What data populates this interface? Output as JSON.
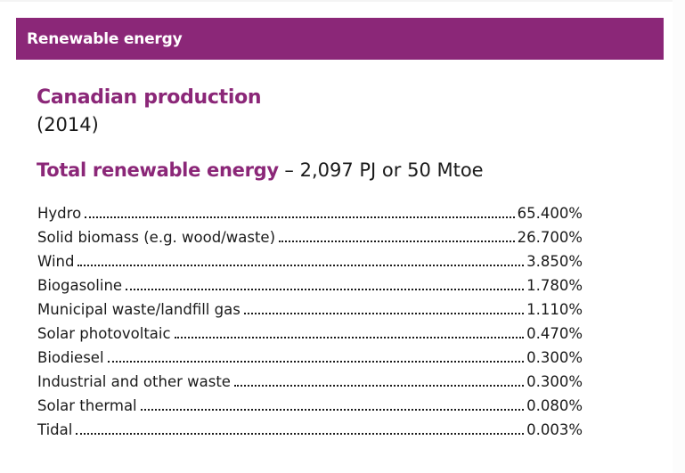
{
  "header": {
    "title": "Renewable energy",
    "color": "#8b2778"
  },
  "section": {
    "heading": "Canadian production",
    "year": "(2014)"
  },
  "total": {
    "label": "Total renewable energy",
    "value": " – 2,097 PJ or 50 Mtoe"
  },
  "sources": [
    {
      "label": "Hydro",
      "value": "65.400%"
    },
    {
      "label": "Solid biomass (e.g. wood/waste)",
      "value": "26.700%"
    },
    {
      "label": "Wind",
      "value": "3.850%"
    },
    {
      "label": "Biogasoline",
      "value": "1.780%"
    },
    {
      "label": "Municipal waste/landfill gas",
      "value": "1.110%"
    },
    {
      "label": "Solar photovoltaic",
      "value": "0.470%"
    },
    {
      "label": "Biodiesel",
      "value": "0.300%"
    },
    {
      "label": "Industrial and other waste",
      "value": "0.300%"
    },
    {
      "label": "Solar thermal",
      "value": "0.080%"
    },
    {
      "label": "Tidal",
      "value": "0.003%"
    }
  ]
}
